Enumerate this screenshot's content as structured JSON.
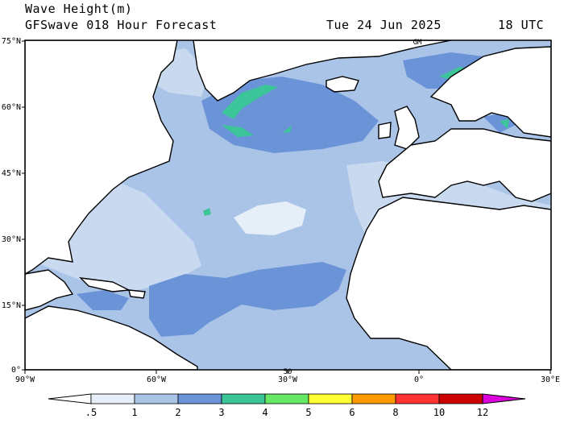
{
  "header": {
    "variable": "Wave Height(m)",
    "model": "GFSwave 018 Hour Forecast",
    "date": "Tue 24 Jun 2025",
    "time": "18 UTC"
  },
  "map": {
    "lat_labels": [
      "75°N",
      "60°N",
      "45°N",
      "30°N",
      "15°N",
      "0°"
    ],
    "lon_labels": [
      "90°W",
      "60°W",
      "30°W",
      "0°",
      "30°E"
    ],
    "inner_labels": [
      "GM",
      "50"
    ],
    "land_color": "#ffffff",
    "coast_color": "#000000"
  },
  "colorbar": {
    "labels": [
      ".5",
      "1",
      "2",
      "3",
      "4",
      "5",
      "6",
      "8",
      "10",
      "12"
    ],
    "colors": [
      "#e6eef8",
      "#aac4e8",
      "#6b93d8",
      "#3dc59a",
      "#66e866",
      "#ffff33",
      "#ff9900",
      "#ff3333",
      "#cc0000",
      "#cc00cc"
    ],
    "low_color": "#ffffff",
    "high_color": "#dd00dd"
  }
}
